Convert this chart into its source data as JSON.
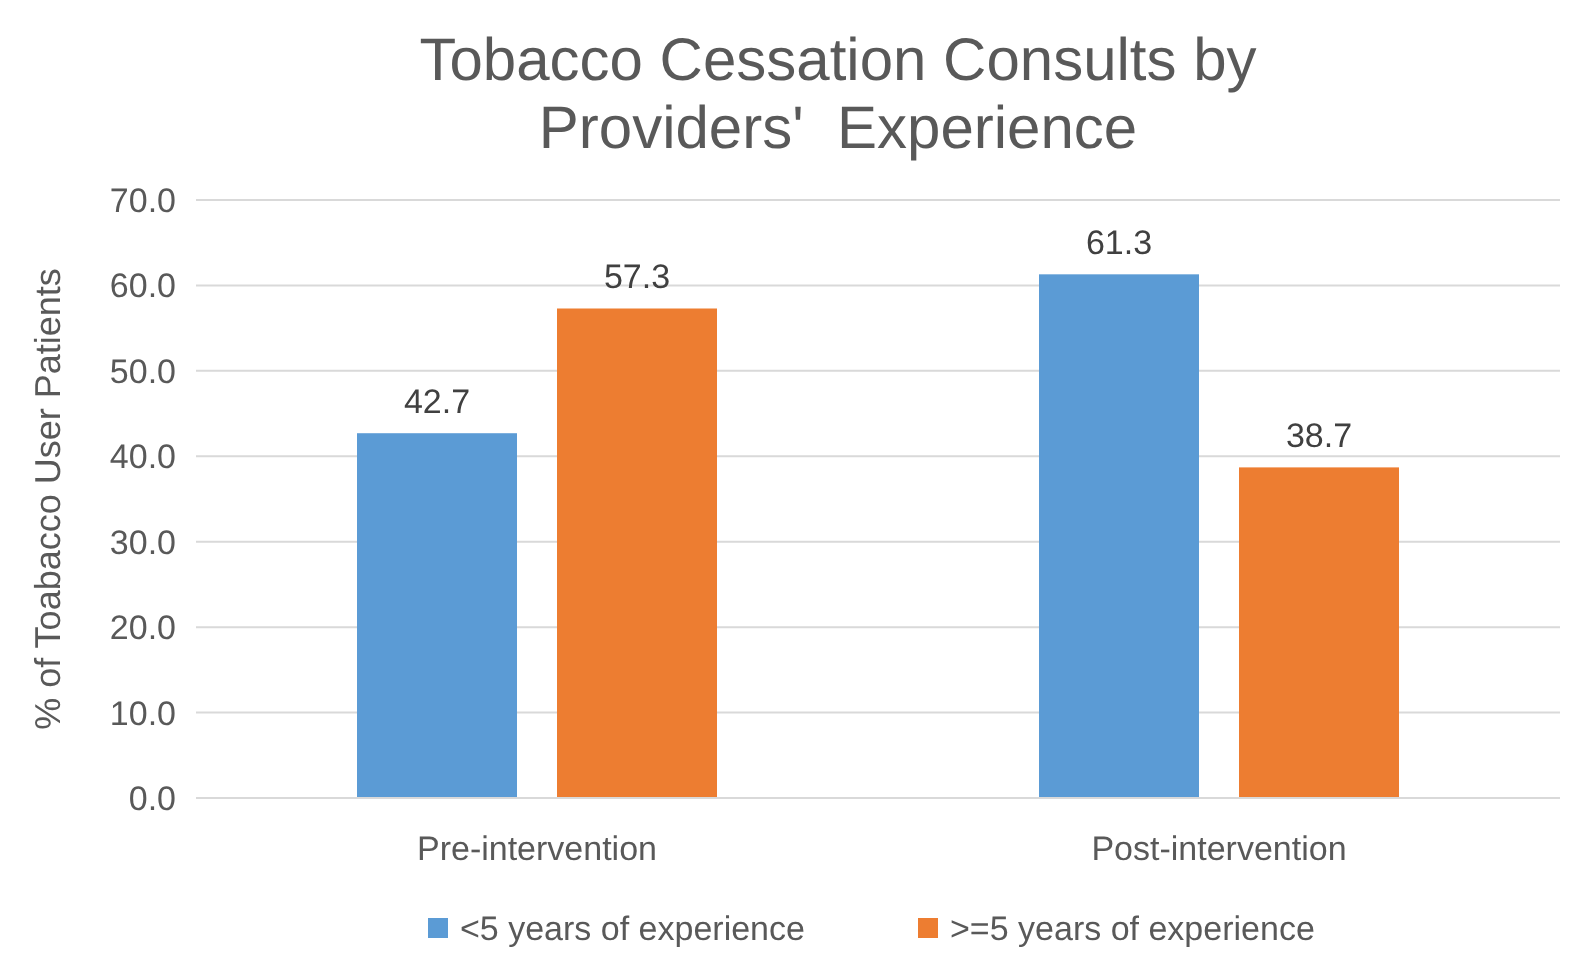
{
  "chart_data": {
    "type": "bar",
    "title": "Tobacco Cessation Consults by Providers'  Experience",
    "ylabel": "% of Toabacco User Patients",
    "categories": [
      "Pre-intervention",
      "Post-intervention"
    ],
    "series": [
      {
        "name": "<5 years of experience",
        "color": "#5b9bd5",
        "values": [
          42.7,
          61.3
        ]
      },
      {
        "name": ">=5 years of experience",
        "color": "#ed7d31",
        "values": [
          57.3,
          38.7
        ]
      }
    ],
    "ylim": [
      0,
      70
    ],
    "yticks": [
      {
        "value": 0,
        "label": "0.0"
      },
      {
        "value": 10,
        "label": "10.0"
      },
      {
        "value": 20,
        "label": "20.0"
      },
      {
        "value": 30,
        "label": "30.0"
      },
      {
        "value": 40,
        "label": "40.0"
      },
      {
        "value": 50,
        "label": "50.0"
      },
      {
        "value": 60,
        "label": "60.0"
      },
      {
        "value": 70,
        "label": "70.0"
      }
    ],
    "grid": "y",
    "legend": "bottom",
    "data_labels": true
  }
}
